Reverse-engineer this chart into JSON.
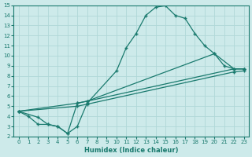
{
  "xlabel": "Humidex (Indice chaleur)",
  "xlim": [
    -0.5,
    23.5
  ],
  "ylim": [
    2,
    15
  ],
  "xticks": [
    0,
    1,
    2,
    3,
    4,
    5,
    6,
    7,
    8,
    9,
    10,
    11,
    12,
    13,
    14,
    15,
    16,
    17,
    18,
    19,
    20,
    21,
    22,
    23
  ],
  "yticks": [
    2,
    3,
    4,
    5,
    6,
    7,
    8,
    9,
    10,
    11,
    12,
    13,
    14,
    15
  ],
  "bg_color": "#cdeaea",
  "grid_color": "#b0d8d8",
  "line_color": "#1a7a6e",
  "curve1_x": [
    0,
    1,
    2,
    3,
    4,
    5,
    6,
    7,
    10,
    11,
    12,
    13,
    14,
    15,
    16,
    17,
    18,
    19,
    20,
    21,
    22,
    23
  ],
  "curve1_y": [
    4.5,
    4.0,
    3.2,
    3.2,
    3.0,
    2.3,
    3.0,
    5.3,
    8.5,
    10.8,
    12.2,
    14.0,
    14.8,
    14.95,
    14.0,
    13.7,
    12.2,
    11.0,
    10.2,
    9.0,
    8.7,
    8.7
  ],
  "curve2_x": [
    0,
    2,
    3,
    4,
    5,
    6,
    7,
    20,
    22,
    23
  ],
  "curve2_y": [
    4.5,
    3.9,
    3.2,
    3.0,
    2.3,
    5.3,
    5.5,
    10.2,
    8.7,
    8.7
  ],
  "curve3_x": [
    0,
    6,
    7,
    22,
    23
  ],
  "curve3_y": [
    4.5,
    5.3,
    5.5,
    8.7,
    8.7
  ],
  "curve4_x": [
    0,
    6,
    7,
    22,
    23
  ],
  "curve4_y": [
    4.5,
    5.0,
    5.2,
    8.4,
    8.5
  ]
}
